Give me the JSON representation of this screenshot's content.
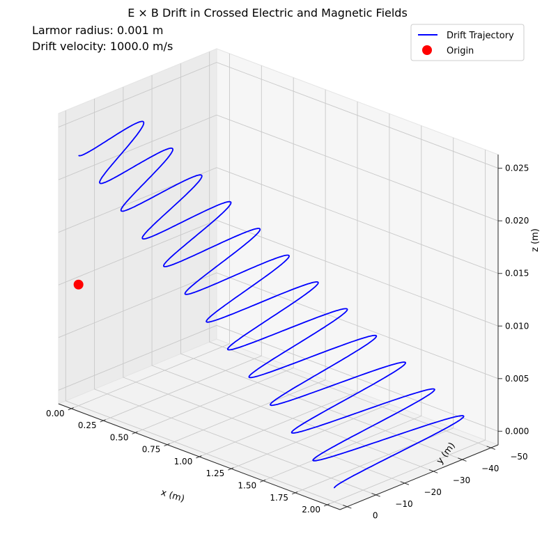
{
  "chart_data": {
    "type": "line",
    "projection": "3d",
    "title": "E × B Drift in Crossed Electric and Magnetic Fields",
    "annotations": [
      "Larmor radius: 0.001 m",
      "Drift velocity: 1000.0 m/s"
    ],
    "xlabel": "x (m)",
    "ylabel": "y (m)",
    "zlabel": "z (m)",
    "xlim": [
      -0.1,
      2.1
    ],
    "ylim": [
      -52.5,
      2.5
    ],
    "zlim": [
      -0.0013,
      0.0263
    ],
    "x_ticks": [
      "0.00",
      "0.25",
      "0.50",
      "0.75",
      "1.00",
      "1.25",
      "1.50",
      "1.75",
      "2.00"
    ],
    "y_ticks": [
      "0",
      "−10",
      "−20",
      "−30",
      "−40",
      "−50"
    ],
    "z_ticks": [
      "0.000",
      "0.005",
      "0.010",
      "0.015",
      "0.020",
      "0.025"
    ],
    "grid": true,
    "legend_position": "top-right",
    "series": [
      {
        "name": "Drift Trajectory",
        "color": "#0000ff",
        "kind": "helix-drift",
        "x_start": 0.0,
        "x_end": 2.0,
        "y_start": 0.0,
        "y_end": -50.0,
        "z_start": 0.0,
        "z_end": 0.025,
        "loops": 12
      },
      {
        "name": "Origin",
        "color": "#ff0000",
        "kind": "marker",
        "points": [
          {
            "x": 0.0,
            "y": 0.0,
            "z": 0.0
          }
        ]
      }
    ]
  }
}
